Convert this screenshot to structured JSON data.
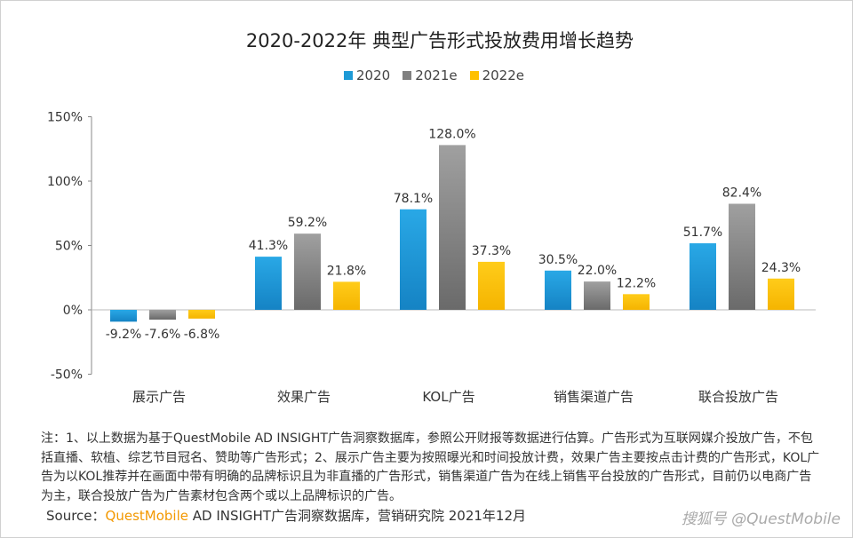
{
  "chart_data": {
    "type": "bar",
    "title": "2020-2022年 典型广告形式投放费用增长趋势",
    "categories": [
      "展示广告",
      "效果广告",
      "KOL广告",
      "销售渠道广告",
      "联合投放广告"
    ],
    "series": [
      {
        "name": "2020",
        "color": "#1e9ad6",
        "values": [
          -9.2,
          41.3,
          78.1,
          30.5,
          51.7
        ]
      },
      {
        "name": "2021e",
        "color": "#808080",
        "values": [
          -7.6,
          59.2,
          128.0,
          22.0,
          82.4
        ]
      },
      {
        "name": "2022e",
        "color": "#ffc000",
        "values": [
          -6.8,
          21.8,
          37.3,
          12.2,
          24.3
        ]
      }
    ],
    "data_labels": [
      [
        "-9.2%",
        "41.3%",
        "78.1%",
        "30.5%",
        "51.7%"
      ],
      [
        "-7.6%",
        "59.2%",
        "128.0%",
        "22.0%",
        "82.4%"
      ],
      [
        "-6.8%",
        "21.8%",
        "37.3%",
        "12.2%",
        "24.3%"
      ]
    ],
    "ylim": [
      -50,
      150
    ],
    "yticks": [
      -50,
      0,
      50,
      100,
      150
    ],
    "ytick_labels": [
      "-50%",
      "0%",
      "50%",
      "100%",
      "150%"
    ],
    "grid": false,
    "legend_position": "top"
  },
  "note": "注：1、以上数据为基于QuestMobile AD INSIGHT广告洞察数据库，参照公开财报等数据进行估算。广告形式为互联网媒介投放广告，不包括直播、软植、综艺节目冠名、赞助等广告形式；2、展示广告主要为按照曝光和时间投放计费，效果广告主要按点击计费的广告形式，KOL广告为以KOL推荐并在画面中带有明确的品牌标识且为非直播的广告形式，销售渠道广告为在线上销售平台投放的广告形式，目前仍以电商广告为主，联合投放广告为广告素材包含两个或以上品牌标识的广告。",
  "source": {
    "prefix": "Source：",
    "brand": "QuestMobile",
    "rest": " AD INSIGHT广告洞察数据库，营销研究院 2021年12月"
  },
  "watermark": "搜狐号 @QuestMobile"
}
